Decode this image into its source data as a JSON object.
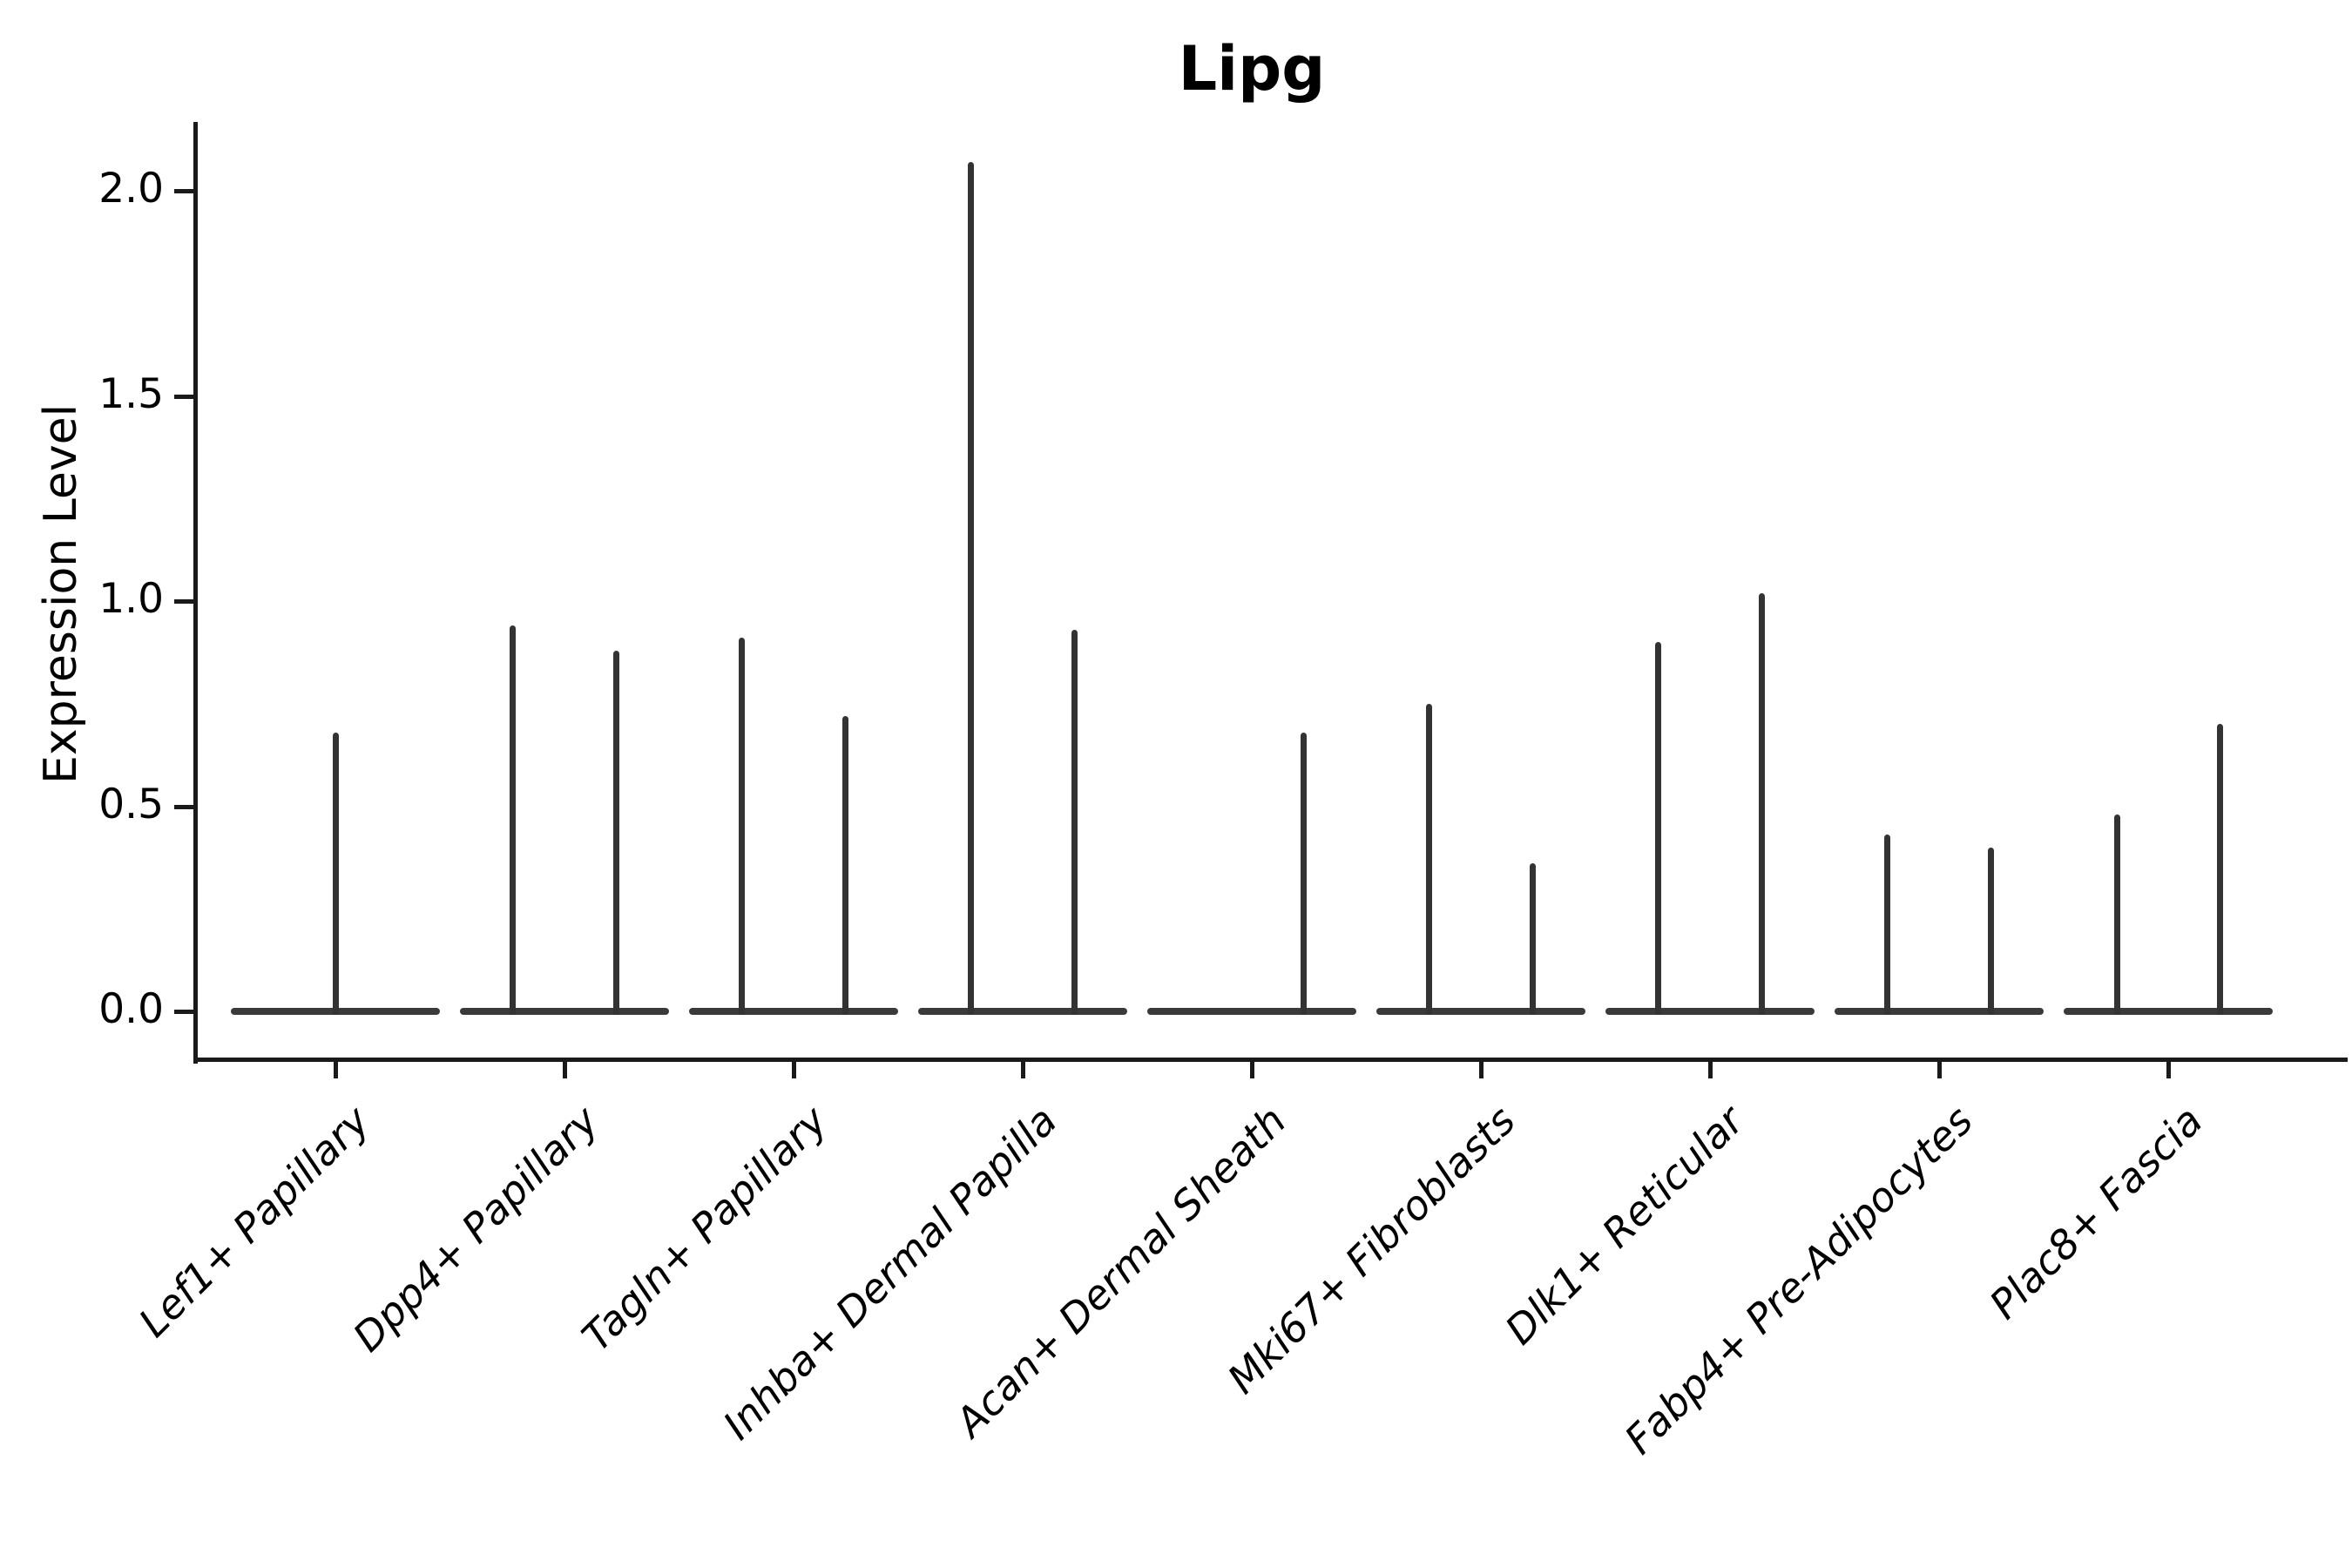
{
  "title": "Lipg",
  "ylabel": "Expression Level",
  "chart_data": {
    "type": "violin",
    "title": "Lipg",
    "xlabel": "",
    "ylabel": "Expression Level",
    "ylim": [
      -0.12,
      2.17
    ],
    "grid": false,
    "legend": "none",
    "ytick_labels": [
      "0.0",
      "0.5",
      "1.0",
      "1.5",
      "2.0"
    ],
    "ytick_values": [
      0.0,
      0.5,
      1.0,
      1.5,
      2.0
    ],
    "categories": [
      "Lef1+ Papillary",
      "Dpp4+ Papillary",
      "Tagln+ Papillary",
      "Inhba+ Dermal Papilla",
      "Acan+ Dermal Sheath",
      "Mki67+ Fibroblasts",
      "Dlk1+ Reticular",
      "Fabp4+ Pre-Adipocytes",
      "Plac8+ Fascia"
    ],
    "violin_base_halfwidth": 0.46,
    "groups": [
      {
        "category": "Lef1+ Papillary",
        "violins": [
          {
            "offset": 0.0,
            "max": 0.68
          }
        ]
      },
      {
        "category": "Dpp4+ Papillary",
        "violins": [
          {
            "offset": -0.227,
            "max": 0.94
          },
          {
            "offset": 0.227,
            "max": 0.88
          }
        ]
      },
      {
        "category": "Tagln+ Papillary",
        "violins": [
          {
            "offset": -0.227,
            "max": 0.91
          },
          {
            "offset": 0.227,
            "max": 0.72
          }
        ]
      },
      {
        "category": "Inhba+ Dermal Papilla",
        "violins": [
          {
            "offset": -0.227,
            "max": 2.07
          },
          {
            "offset": 0.227,
            "max": 0.93
          }
        ]
      },
      {
        "category": "Acan+ Dermal Sheath",
        "violins": [
          {
            "offset": 0.228,
            "max": 0.68
          }
        ]
      },
      {
        "category": "Mki67+ Fibroblasts",
        "violins": [
          {
            "offset": -0.227,
            "max": 0.75
          },
          {
            "offset": 0.227,
            "max": 0.36
          }
        ]
      },
      {
        "category": "Dlk1+ Reticular",
        "violins": [
          {
            "offset": -0.227,
            "max": 0.9
          },
          {
            "offset": 0.227,
            "max": 1.02
          }
        ]
      },
      {
        "category": "Fabp4+ Pre-Adipocytes",
        "violins": [
          {
            "offset": -0.227,
            "max": 0.43
          },
          {
            "offset": 0.227,
            "max": 0.4
          }
        ]
      },
      {
        "category": "Plac8+ Fascia",
        "violins": [
          {
            "offset": -0.224,
            "max": 0.48
          },
          {
            "offset": 0.227,
            "max": 0.7
          }
        ]
      }
    ],
    "colors": {
      "violin": "#3a3a3a",
      "spine": "#1a1a1a",
      "text": "#000000",
      "background": "#ffffff"
    }
  }
}
